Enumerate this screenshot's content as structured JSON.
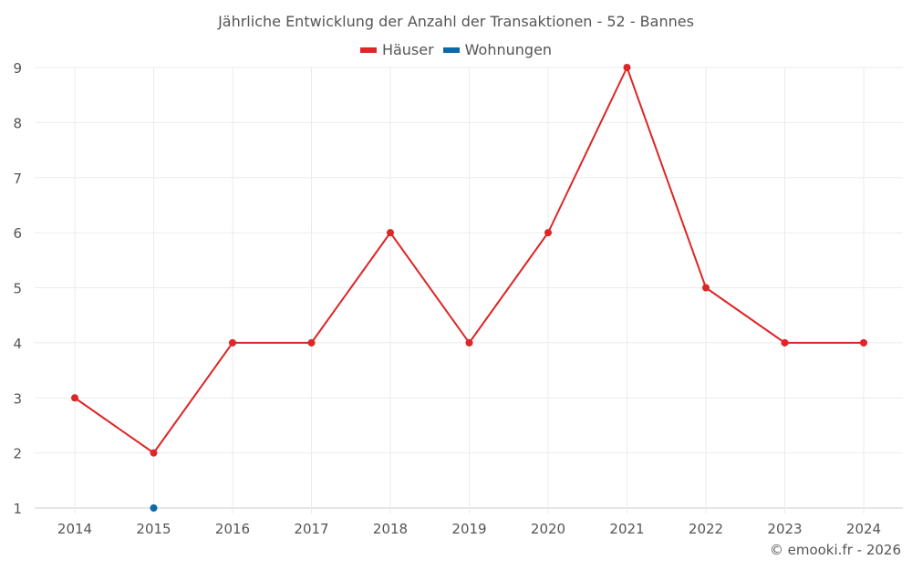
{
  "title": "Jährliche Entwicklung der Anzahl der Transaktionen - 52 - Bannes",
  "legend": [
    {
      "label": "Häuser",
      "color": "#dd2626"
    },
    {
      "label": "Wohnungen",
      "color": "#0b6aa8"
    }
  ],
  "credit": "© emooki.fr - 2026",
  "chart_data": {
    "type": "line",
    "title": "Jährliche Entwicklung der Anzahl der Transaktionen - 52 - Bannes",
    "xlabel": "",
    "ylabel": "",
    "categories": [
      "2014",
      "2015",
      "2016",
      "2017",
      "2018",
      "2019",
      "2020",
      "2021",
      "2022",
      "2023",
      "2024"
    ],
    "series": [
      {
        "name": "Häuser",
        "color": "#dd2626",
        "values": [
          3,
          2,
          4,
          4,
          6,
          4,
          6,
          9,
          5,
          4,
          4
        ]
      },
      {
        "name": "Wohnungen",
        "color": "#0b6aa8",
        "values": [
          null,
          1,
          null,
          null,
          null,
          null,
          null,
          null,
          null,
          null,
          null
        ]
      }
    ],
    "ylim": [
      1,
      9
    ],
    "yticks": [
      1,
      2,
      3,
      4,
      5,
      6,
      7,
      8,
      9
    ],
    "grid": true,
    "legend_position": "top"
  }
}
